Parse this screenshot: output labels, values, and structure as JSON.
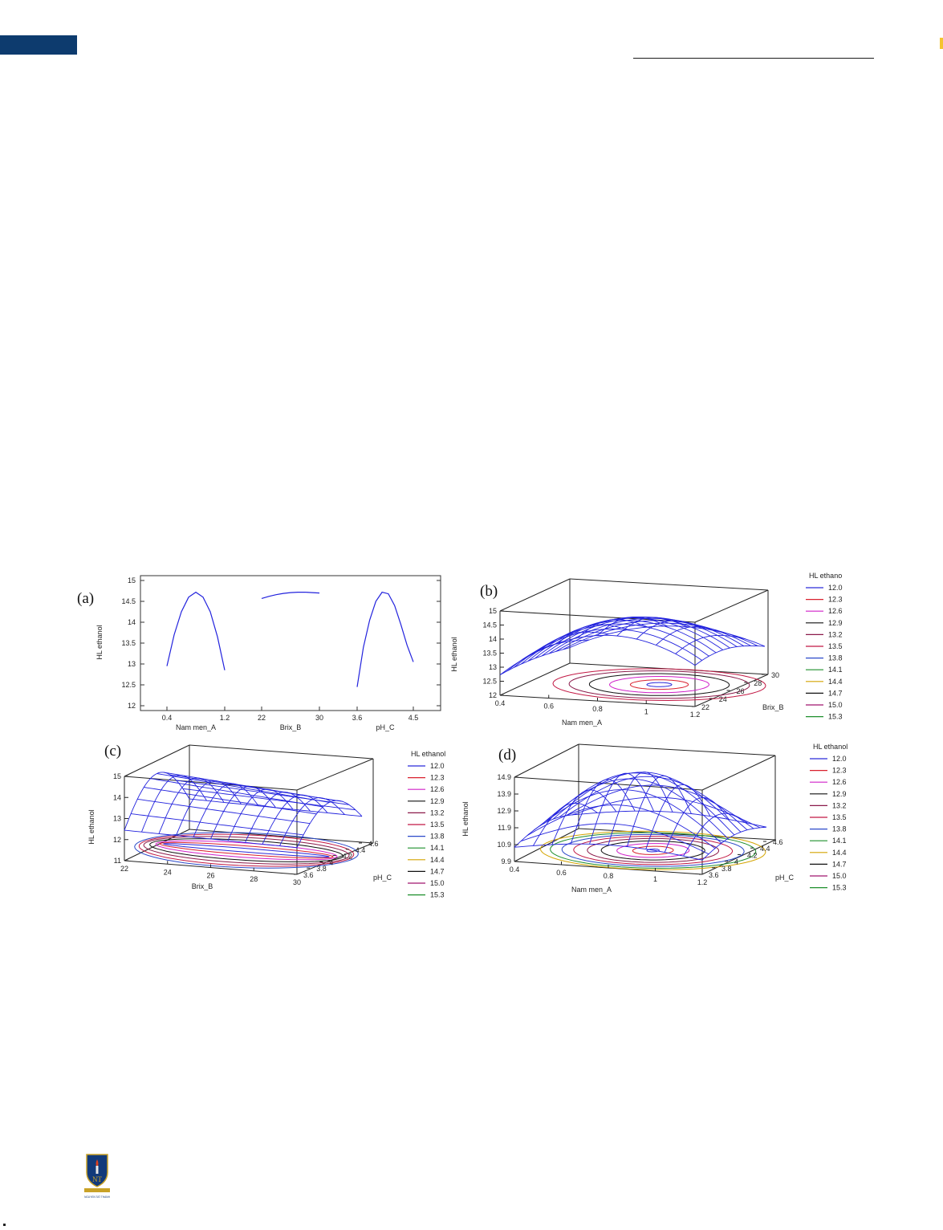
{
  "page": {
    "accent_color": "#0d3b6e",
    "highlight_color": "#f4c430"
  },
  "logo": {
    "name": "NGUYEN TAT THANH",
    "initials": "NTT",
    "icon": "university-crest-icon"
  },
  "chart_data": [
    {
      "panel": "(a)",
      "type": "line",
      "ylabel": "HL ethanol",
      "ylim": [
        12,
        15
      ],
      "yticks": [
        "12",
        "12.5",
        "13",
        "13.5",
        "14",
        "14.5",
        "15"
      ],
      "segments": [
        {
          "xlabel": "Nam men_A",
          "xticks": [
            "0.4",
            "1.2"
          ],
          "xrange": [
            0.4,
            1.2
          ],
          "x": [
            0.4,
            0.5,
            0.6,
            0.7,
            0.8,
            0.9,
            1.0,
            1.1,
            1.2
          ],
          "y": [
            12.95,
            13.7,
            14.25,
            14.6,
            14.72,
            14.6,
            14.25,
            13.65,
            12.85
          ]
        },
        {
          "xlabel": "Brix_B",
          "xticks": [
            "22",
            "30"
          ],
          "xrange": [
            22,
            30
          ],
          "x": [
            22,
            23,
            24,
            25,
            26,
            27,
            28,
            29,
            30
          ],
          "y": [
            14.57,
            14.62,
            14.66,
            14.69,
            14.71,
            14.72,
            14.72,
            14.71,
            14.7
          ]
        },
        {
          "xlabel": "pH_C",
          "xticks": [
            "3.6",
            "4.5"
          ],
          "xrange": [
            3.6,
            4.5
          ],
          "x": [
            3.6,
            3.7,
            3.8,
            3.9,
            4.0,
            4.1,
            4.2,
            4.3,
            4.4,
            4.5
          ],
          "y": [
            12.45,
            13.4,
            14.05,
            14.5,
            14.72,
            14.68,
            14.4,
            13.95,
            13.45,
            13.05
          ]
        }
      ],
      "color": "#2222dd"
    },
    {
      "panel": "(b)",
      "type": "surface",
      "zlabel": "HL ethanol",
      "zticks": [
        "12",
        "12.5",
        "13",
        "13.5",
        "14",
        "14.5",
        "15"
      ],
      "xlabel": "Nam men_A",
      "xticks": [
        "0.4",
        "0.6",
        "0.8",
        "1",
        "1.2"
      ],
      "ylabel": "Brix_B",
      "yticks": [
        "22",
        "24",
        "26",
        "28",
        "30"
      ],
      "legend_title": "HL ethano",
      "legend": [
        "12.0",
        "12.3",
        "12.6",
        "12.9",
        "13.2",
        "13.5",
        "13.8",
        "14.1",
        "14.4",
        "14.7",
        "15.0",
        "15.3"
      ]
    },
    {
      "panel": "(c)",
      "type": "surface",
      "zlabel": "HL ethanol",
      "zticks": [
        "11",
        "12",
        "13",
        "14",
        "15"
      ],
      "xlabel": "Brix_B",
      "xticks": [
        "22",
        "24",
        "26",
        "28",
        "30"
      ],
      "ylabel": "pH_C",
      "yticks": [
        "3.6",
        "3.8",
        "4",
        "4.2",
        "4.4",
        "4.6"
      ],
      "legend_title": "HL ethanol",
      "legend": [
        "12.0",
        "12.3",
        "12.6",
        "12.9",
        "13.2",
        "13.5",
        "13.8",
        "14.1",
        "14.4",
        "14.7",
        "15.0",
        "15.3"
      ]
    },
    {
      "panel": "(d)",
      "type": "surface",
      "zlabel": "HL ethanol",
      "zticks": [
        "9.9",
        "10.9",
        "11.9",
        "12.9",
        "13.9",
        "14.9"
      ],
      "xlabel": "Nam men_A",
      "xticks": [
        "0.4",
        "0.6",
        "0.8",
        "1",
        "1.2"
      ],
      "ylabel": "pH_C",
      "yticks": [
        "3.6",
        "3.8",
        "4",
        "4.2",
        "4.4",
        "4.6"
      ],
      "legend_title": "HL ethanol",
      "legend": [
        "12.0",
        "12.3",
        "12.6",
        "12.9",
        "13.2",
        "13.5",
        "13.8",
        "14.1",
        "14.4",
        "14.7",
        "15.0",
        "15.3"
      ]
    }
  ],
  "legend_colors": [
    "#2b2bd9",
    "#d9202e",
    "#d020c8",
    "#111111",
    "#8b1a4a",
    "#c21844",
    "#2a49c9",
    "#1e8f2c",
    "#d4a400",
    "#111111",
    "#a0146e",
    "#1e8f2c"
  ]
}
